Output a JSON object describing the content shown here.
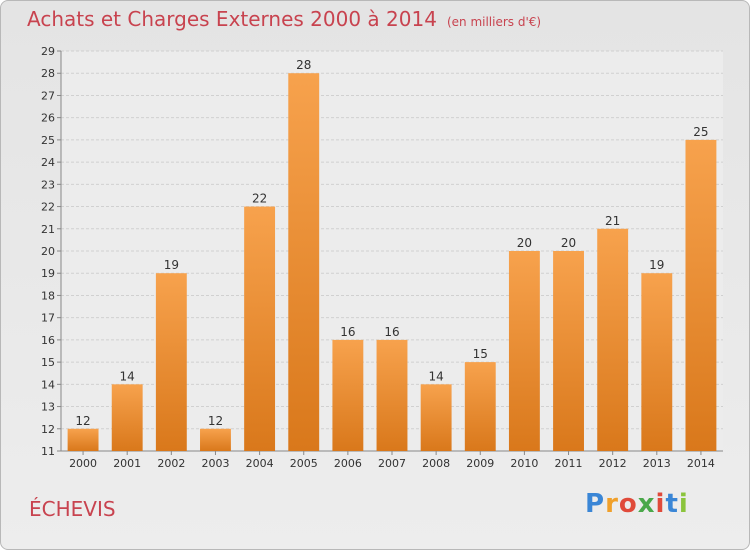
{
  "header": {
    "title": "Achats et Charges Externes 2000 à 2014",
    "unit": "(en milliers d'€)"
  },
  "commune": "ÉCHEVIS",
  "logo": {
    "text": "Proxiti",
    "letter_colors": [
      "#3a86d6",
      "#f0a02a",
      "#e04a3a",
      "#4aa84a",
      "#e04a3a",
      "#3a86d6",
      "#8bc43c"
    ]
  },
  "colors": {
    "bar_light": "#f7a24d",
    "bar_dark": "#d9781b",
    "grid": "#d0d0d0",
    "axis": "#888888",
    "title": "#c8434f"
  },
  "chart_data": {
    "type": "bar",
    "categories": [
      "2000",
      "2001",
      "2002",
      "2003",
      "2004",
      "2005",
      "2006",
      "2007",
      "2008",
      "2009",
      "2010",
      "2011",
      "2012",
      "2013",
      "2014"
    ],
    "values": [
      12,
      14,
      19,
      12,
      22,
      28,
      16,
      16,
      14,
      15,
      20,
      20,
      21,
      19,
      25
    ],
    "ylim": [
      11,
      29
    ],
    "yticks": [
      11,
      12,
      13,
      14,
      15,
      16,
      17,
      18,
      19,
      20,
      21,
      22,
      23,
      24,
      25,
      26,
      27,
      28,
      29
    ],
    "grid": true,
    "data_labels": true
  }
}
